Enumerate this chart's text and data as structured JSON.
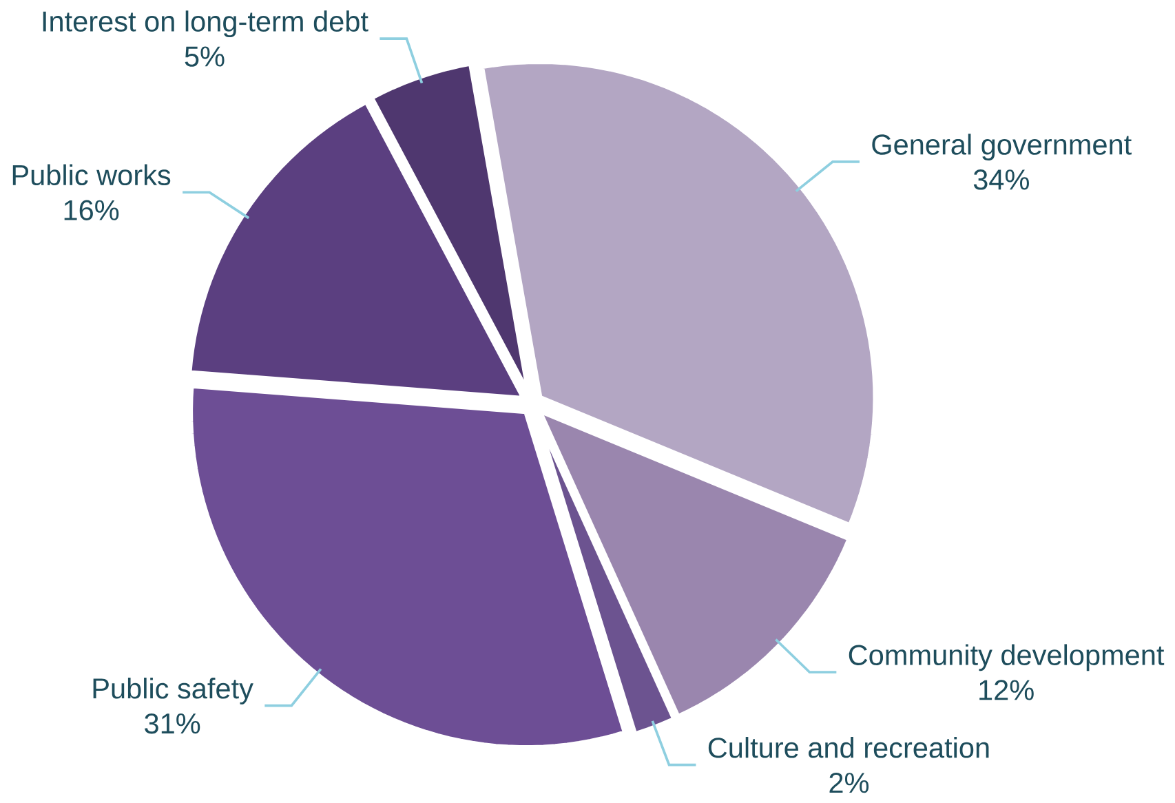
{
  "chart_data": {
    "type": "pie",
    "categories": [
      "General government",
      "Community development",
      "Culture and recreation",
      "Public safety",
      "Public works",
      "Interest on long-term debt"
    ],
    "values": [
      34,
      12,
      2,
      31,
      16,
      5
    ],
    "value_labels": [
      "34%",
      "12%",
      "2%",
      "31%",
      "16%",
      "5%"
    ],
    "colors": [
      "#b3a6c3",
      "#9a86ae",
      "#6c5390",
      "#6d4e95",
      "#5b3f80",
      "#4f376f"
    ]
  }
}
